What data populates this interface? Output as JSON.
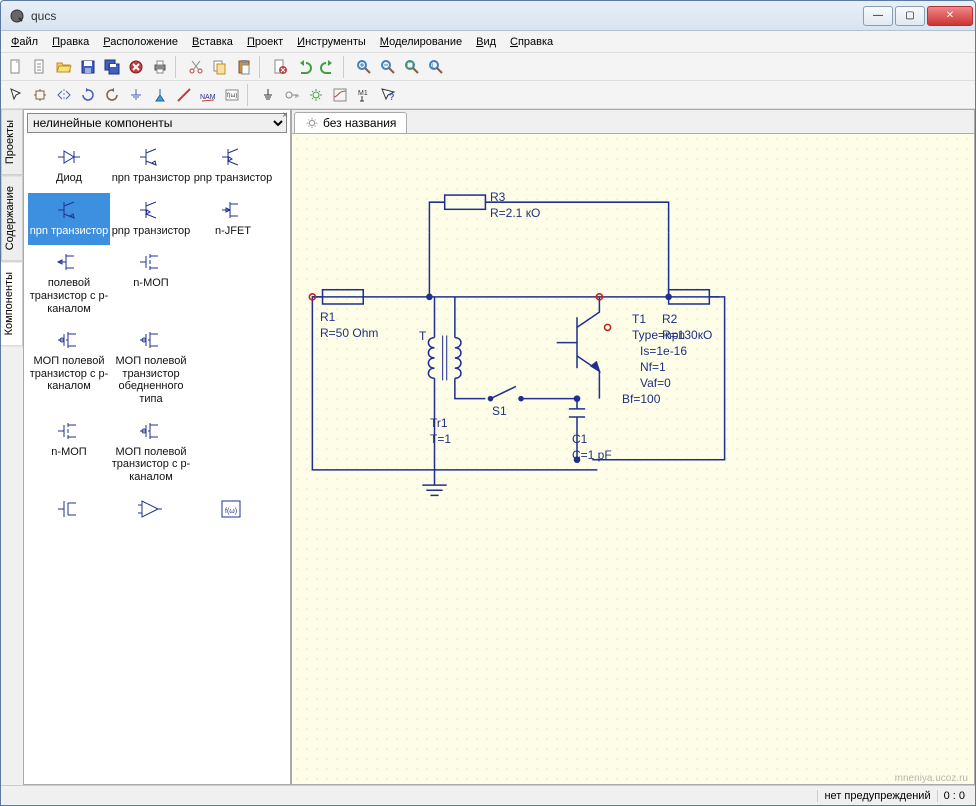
{
  "window": {
    "title": "qucs"
  },
  "winbuttons": {
    "min": "—",
    "max": "▢",
    "close": "✕"
  },
  "menu": [
    {
      "key": "Ф",
      "rest": "айл"
    },
    {
      "key": "П",
      "rest": "равка"
    },
    {
      "key": "Р",
      "rest": "асположение"
    },
    {
      "key": "В",
      "rest": "ставка"
    },
    {
      "key": "П",
      "rest": "роект"
    },
    {
      "key": "И",
      "rest": "нструменты"
    },
    {
      "key": "М",
      "rest": "оделирование"
    },
    {
      "key": "В",
      "rest": "ид"
    },
    {
      "key": "С",
      "rest": "правка"
    }
  ],
  "side_tabs": [
    "Проекты",
    "Содержание",
    "Компоненты"
  ],
  "side_active": 2,
  "dropdown_value": "нелинейные компоненты",
  "components": [
    {
      "label": "Диод",
      "sym": "diode"
    },
    {
      "label": "npn транзистор",
      "sym": "npn"
    },
    {
      "label": "pnp транзистор",
      "sym": "pnp"
    },
    {
      "label": "npn транзистор",
      "sym": "npn2",
      "selected": true
    },
    {
      "label": "pnp транзистор",
      "sym": "pnp2"
    },
    {
      "label": "n-JFET",
      "sym": "njfet"
    },
    {
      "label": "полевой транзистор с p-каналом",
      "sym": "pfet"
    },
    {
      "label": "n-МОП",
      "sym": "nmos"
    },
    {
      "label": "",
      "sym": "blank"
    },
    {
      "label": "МОП полевой транзистор с p-каналом",
      "sym": "pmos"
    },
    {
      "label": "МОП полевой транзистор обедненного типа",
      "sym": "dmos"
    },
    {
      "label": "",
      "sym": "blank"
    },
    {
      "label": "n-МОП",
      "sym": "nmos2"
    },
    {
      "label": "МОП полевой транзистор с p-каналом",
      "sym": "pmos2"
    },
    {
      "label": "",
      "sym": "blank"
    },
    {
      "label": "",
      "sym": "fet3"
    },
    {
      "label": "",
      "sym": "amp"
    },
    {
      "label": "",
      "sym": "box"
    }
  ],
  "tab_label": "без названия",
  "schematic": {
    "color_wire": "#203090",
    "color_text": "#203090",
    "R3": {
      "name": "R3",
      "value": "R=2.1 кО"
    },
    "R1": {
      "name": "R1",
      "value": "R=50 Ohm"
    },
    "R2": {
      "name": "R2",
      "value": "R=130кО"
    },
    "T1": {
      "name": "T1",
      "p": [
        "Type=npn",
        "Is=1e-16",
        "Nf=1",
        "Vaf=0",
        "Bf=100"
      ]
    },
    "Tr1": {
      "name": "Tr1",
      "value": "T=1"
    },
    "S1": {
      "name": "S1"
    },
    "C1": {
      "name": "C1",
      "value": "C=1 pF"
    },
    "T_lbl": "T"
  },
  "status": {
    "warnings": "нет предупреждений",
    "coords": "0 : 0"
  },
  "watermark": "mneniya.ucoz.ru"
}
